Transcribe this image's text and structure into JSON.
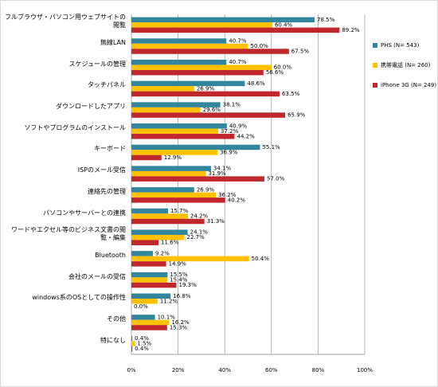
{
  "chart_data": {
    "type": "bar",
    "orientation": "horizontal",
    "categories": [
      "フルブラウザ・パソコン用ウェブサイトの閲覧",
      "無線LAN",
      "スケジュールの管理",
      "タッチパネル",
      "ダウンロードしたアプリ",
      "ソフトやプログラムのインストール",
      "キーボード",
      "ISPのメール受信",
      "連絡先の管理",
      "パソコンやサーバーとの連携",
      "ワードやエクセル等のビジネス文書の閲覧・編集",
      "Bluetooth",
      "会社のメールの受信",
      "windows系のOSとしての操作性",
      "その他",
      "特になし"
    ],
    "series": [
      {
        "name": "PHS (N= 543)",
        "color": "#31859c",
        "values": [
          78.5,
          40.7,
          40.7,
          48.6,
          38.1,
          40.9,
          55.1,
          34.1,
          26.9,
          15.7,
          24.1,
          9.2,
          15.5,
          16.8,
          10.1,
          0.4
        ],
        "value_labels": [
          "78.5%",
          "40.7%",
          "40.7%",
          "48.6%",
          "38.1%",
          "40.9%",
          "55.1%",
          "34.1%",
          "26.9%",
          "15.7%",
          "24.1%",
          "9.2%",
          "15.5%",
          "16.8%",
          "10.1%",
          "0.4%"
        ]
      },
      {
        "name": "携帯電話 (N= 260)",
        "color": "#ffc000",
        "values": [
          60.4,
          50.0,
          60.0,
          26.9,
          29.6,
          37.2,
          36.9,
          31.9,
          36.2,
          24.2,
          22.7,
          50.4,
          15.4,
          11.2,
          16.2,
          1.5
        ],
        "value_labels": [
          "60.4%",
          "50.0%",
          "60.0%",
          "26.9%",
          "29.6%",
          "37.2%",
          "36.9%",
          "31.9%",
          "36.2%",
          "24.2%",
          "22.7%",
          "50.4%",
          "15.4%",
          "11.2%",
          "16.2%",
          "1.5%"
        ]
      },
      {
        "name": "iPhone 3G (N= 249)",
        "color": "#c0272d",
        "values": [
          89.2,
          67.5,
          56.6,
          63.5,
          65.9,
          44.2,
          12.9,
          57.0,
          40.2,
          31.3,
          11.6,
          14.9,
          19.3,
          0.0,
          15.3,
          0.4
        ],
        "value_labels": [
          "89.2%",
          "67.5%",
          "56.6%",
          "63.5%",
          "65.9%",
          "44.2%",
          "12.9%",
          "57.0%",
          "40.2%",
          "31.3%",
          "11.6%",
          "14.9%",
          "19.3%",
          "0.0%",
          "15.3%",
          "0.4%"
        ]
      }
    ],
    "xlim": [
      0,
      100
    ],
    "xticks": [
      {
        "value": 0,
        "label": "0%"
      },
      {
        "value": 20,
        "label": "20%"
      },
      {
        "value": 40,
        "label": "40%"
      },
      {
        "value": 60,
        "label": "60%"
      },
      {
        "value": 80,
        "label": "80%"
      },
      {
        "value": 100,
        "label": "100%"
      }
    ],
    "grid": true,
    "legend": "right"
  }
}
